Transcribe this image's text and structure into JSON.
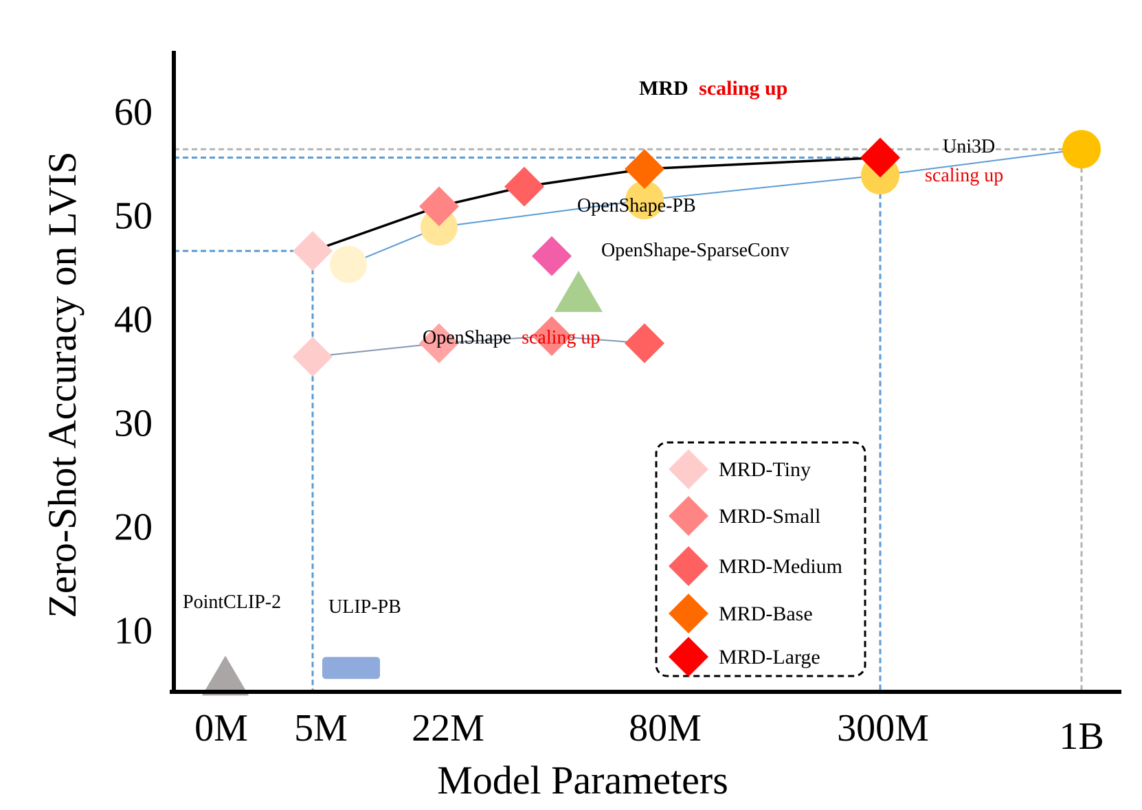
{
  "chart_data": {
    "type": "scatter",
    "xlabel": "Model Parameters",
    "ylabel": "Zero-Shot Accuracy on LVIS",
    "x_categories": [
      "0M",
      "5M",
      "22M",
      "80M",
      "300M",
      "1B"
    ],
    "y_ticks": [
      10,
      20,
      30,
      40,
      50,
      60
    ],
    "ylim": [
      4,
      62
    ],
    "grid": false,
    "colors": {
      "mrd_tiny": "#ffcccc",
      "mrd_small": "#ff8585",
      "mrd_medium": "#ff6060",
      "mrd_base": "#ff6a00",
      "mrd_large": "#ff0000",
      "openshape_pb": "#f25ea8",
      "sparseconv": "#a9cf8e",
      "pointclip": "#aaa6a6",
      "ulip": "#8faadc",
      "uni3d": "#ffc000",
      "uni3d_line": "#5b9bd5",
      "openshape_line": "#8497b0",
      "red_text": "#ee0000",
      "guide_blue": "#5b9bd5",
      "guide_gray": "#b3b3b3"
    },
    "series": [
      {
        "id": "mrd",
        "label_bold": "MRD",
        "label_suffix": "scaling up",
        "points": [
          {
            "x": "5M",
            "y": 46.5,
            "size": "MRD-Tiny"
          },
          {
            "x": "22M",
            "y": 50.8,
            "size": "MRD-Small"
          },
          {
            "x": "~45M",
            "y": 52.7,
            "size": "MRD-Medium"
          },
          {
            "x": "80M",
            "y": 54.4,
            "size": "MRD-Base"
          },
          {
            "x": "300M",
            "y": 55.5,
            "size": "MRD-Large"
          }
        ]
      },
      {
        "id": "uni3d",
        "label": "Uni3D",
        "label_suffix": "scaling up",
        "points": [
          {
            "x": "~6M",
            "y": 45.2
          },
          {
            "x": "22M",
            "y": 48.8
          },
          {
            "x": "80M",
            "y": 51.4
          },
          {
            "x": "300M",
            "y": 53.8
          },
          {
            "x": "1B",
            "y": 56.3
          }
        ]
      },
      {
        "id": "openshape",
        "label": "OpenShape",
        "label_suffix": "scaling up",
        "points": [
          {
            "x": "5M",
            "y": 36.3
          },
          {
            "x": "22M",
            "y": 37.6
          },
          {
            "x": "~50M",
            "y": 38.3
          },
          {
            "x": "80M",
            "y": 37.6
          }
        ]
      }
    ],
    "single_points": [
      {
        "label": "OpenShape-PB",
        "y": 46.0
      },
      {
        "label": "OpenShape-SparseConv",
        "y": 42.6
      },
      {
        "label": "PointCLIP-2",
        "y": 5.5
      },
      {
        "label": "ULIP-PB",
        "y": 6.3
      }
    ],
    "legend": {
      "position": "bottom-right",
      "entries": [
        "MRD-Tiny",
        "MRD-Small",
        "MRD-Medium",
        "MRD-Base",
        "MRD-Large"
      ]
    }
  }
}
